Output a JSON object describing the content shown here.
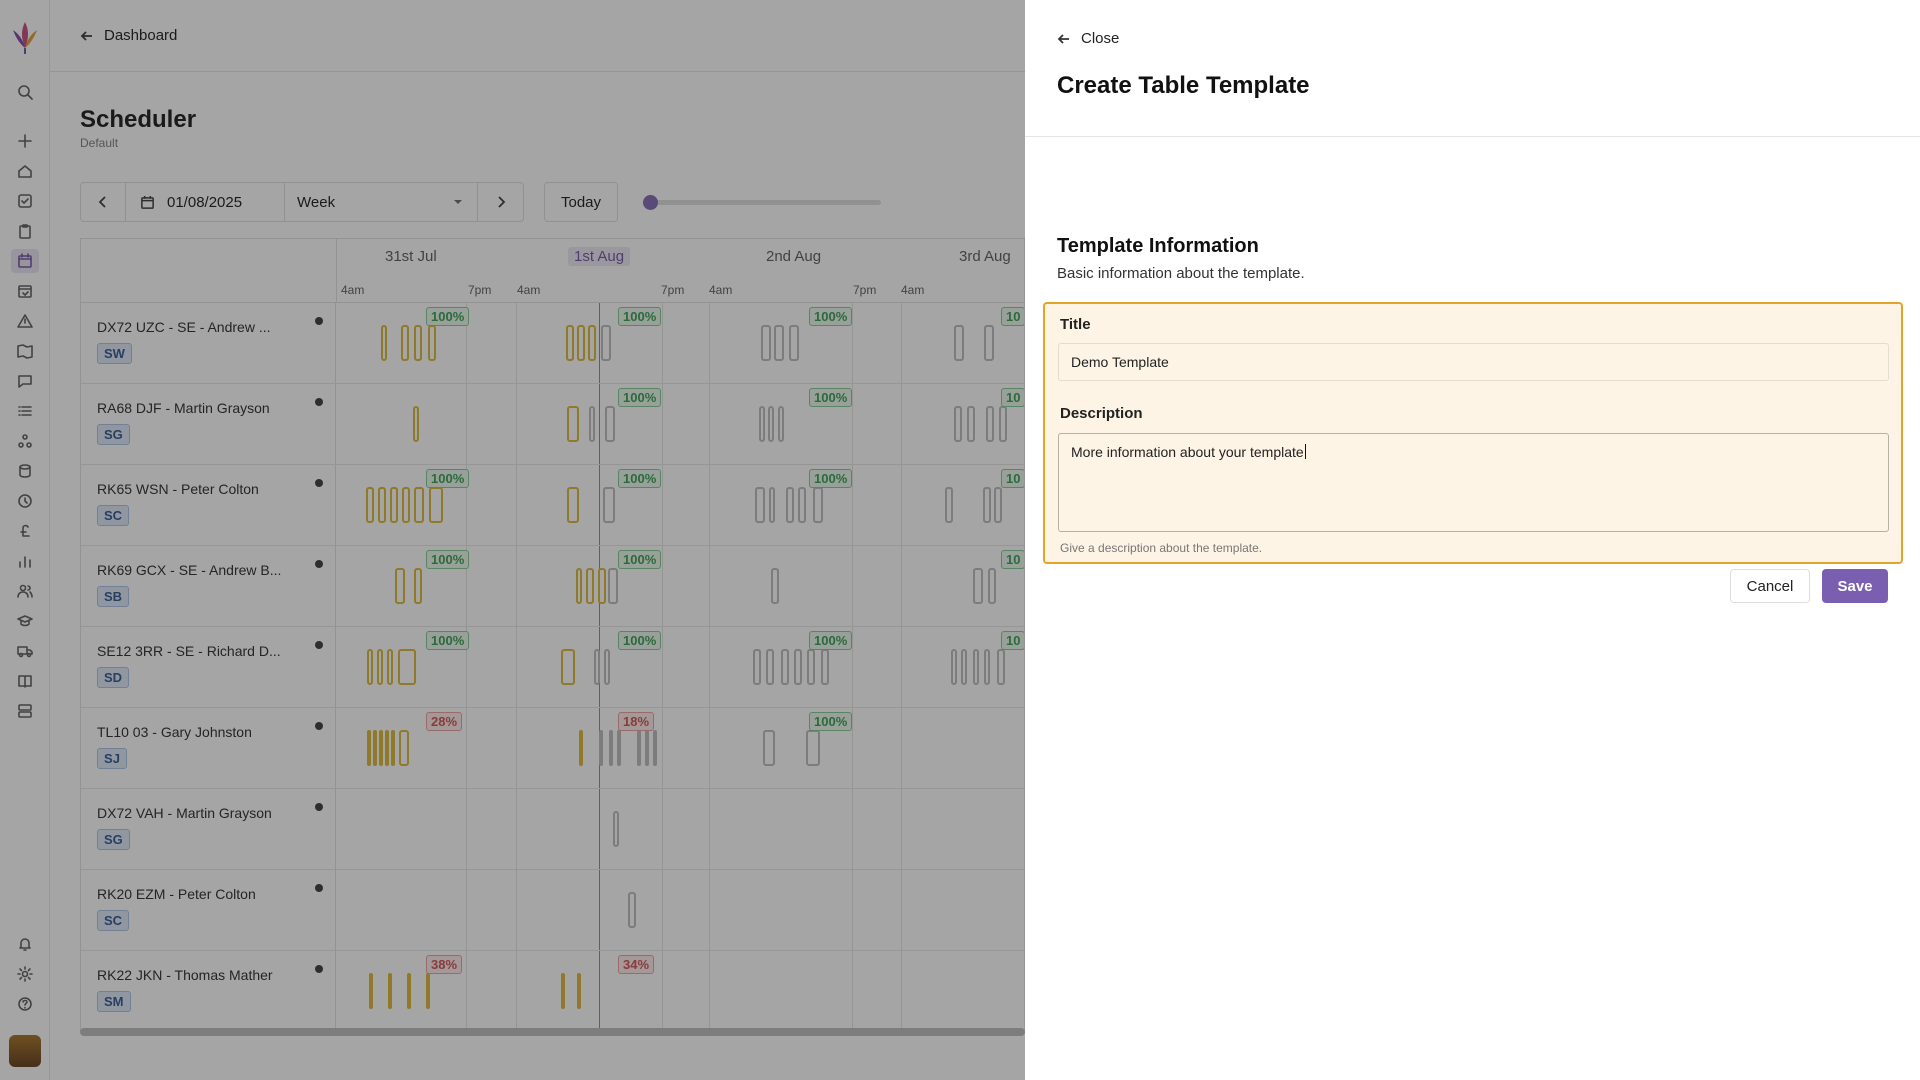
{
  "app": {
    "logo": "lotus-logo",
    "nav_icons": [
      "search-icon",
      "plus-icon",
      "home-icon",
      "check-square-icon",
      "clipboard-icon",
      "calendar-icon",
      "calendar-check-icon",
      "warning-icon",
      "map-icon",
      "message-icon",
      "list-icon",
      "network-icon",
      "database-icon",
      "clock-icon",
      "pound-icon",
      "bar-chart-icon",
      "users-icon",
      "graduation-icon",
      "truck-icon",
      "book-icon",
      "server-icon",
      "bell-icon",
      "settings-icon",
      "help-icon"
    ]
  },
  "topbar": {
    "back_label": "Dashboard"
  },
  "page": {
    "title": "Scheduler",
    "subtitle": "Default"
  },
  "controls": {
    "date": "01/08/2025",
    "view": "Week",
    "today": "Today"
  },
  "schedule": {
    "days": [
      "31st Jul",
      "1st Aug",
      "2nd Aug",
      "3rd Aug"
    ],
    "hours": [
      "4am",
      "7pm",
      "4am",
      "7pm",
      "4am",
      "7pm",
      "4am"
    ],
    "rows": [
      {
        "name": "DX72 UZC - SE - Andrew ...",
        "tag": "SW",
        "pcts": [
          "100%",
          "100%",
          "100%",
          "10"
        ]
      },
      {
        "name": "RA68 DJF - Martin Grayson",
        "tag": "SG",
        "pcts": [
          "",
          "100%",
          "100%",
          "10"
        ]
      },
      {
        "name": "RK65 WSN - Peter Colton",
        "tag": "SC",
        "pcts": [
          "100%",
          "100%",
          "100%",
          "10"
        ]
      },
      {
        "name": "RK69 GCX - SE - Andrew B...",
        "tag": "SB",
        "pcts": [
          "100%",
          "100%",
          "",
          "10"
        ]
      },
      {
        "name": "SE12 3RR - SE - Richard D...",
        "tag": "SD",
        "pcts": [
          "100%",
          "100%",
          "100%",
          "10"
        ]
      },
      {
        "name": "TL10 03 - Gary Johnston",
        "tag": "SJ",
        "pcts": [
          "28%",
          "18%",
          "100%",
          ""
        ]
      },
      {
        "name": "DX72 VAH - Martin Grayson",
        "tag": "SG",
        "pcts": [
          "",
          "",
          "",
          ""
        ]
      },
      {
        "name": "RK20 EZM - Peter Colton",
        "tag": "SC",
        "pcts": [
          "",
          "",
          "",
          ""
        ]
      },
      {
        "name": "RK22 JKN - Thomas Mather",
        "tag": "SM",
        "pcts": [
          "38%",
          "34%",
          "",
          ""
        ]
      }
    ]
  },
  "panel": {
    "close_label": "Close",
    "title": "Create Table Template",
    "section_title": "Template Information",
    "section_subtitle": "Basic information about the template.",
    "title_label": "Title",
    "title_value": "Demo Template",
    "description_label": "Description",
    "description_value": "More information about your template",
    "description_help": "Give a description about the template.",
    "cancel_label": "Cancel",
    "save_label": "Save"
  },
  "colors": {
    "accent": "#7a5fb0",
    "focus_border": "#e4a42a",
    "good": "#2f9a4a",
    "bad": "#d04a4a",
    "block": "#d9b52b"
  }
}
